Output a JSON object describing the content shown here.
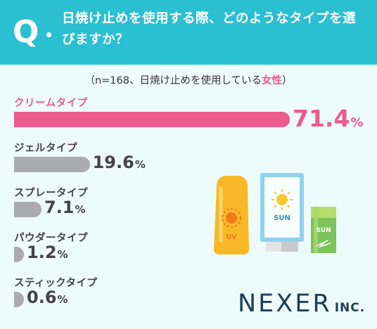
{
  "question": {
    "mark": "Q",
    "text": "日焼け止めを使用する際、どのようなタイプを選びますか？"
  },
  "note": {
    "prefix": "（n=168、日焼け止めを使用している",
    "highlight": "女性",
    "suffix": "）"
  },
  "chart_data": {
    "type": "bar",
    "orientation": "horizontal",
    "categories": [
      "クリームタイプ",
      "ジェルタイプ",
      "スプレータイプ",
      "パウダータイプ",
      "スティックタイプ"
    ],
    "values": [
      71.4,
      19.6,
      7.1,
      1.2,
      0.6
    ],
    "unit": "%",
    "highlight_color": "#ec5b8b",
    "other_color": "#a9abae"
  },
  "illustration": {
    "bottle_label": "UV",
    "tube_label": "SUN",
    "stick_label": "SUN"
  },
  "logo": {
    "name": "NEXER",
    "suffix": "INC."
  }
}
